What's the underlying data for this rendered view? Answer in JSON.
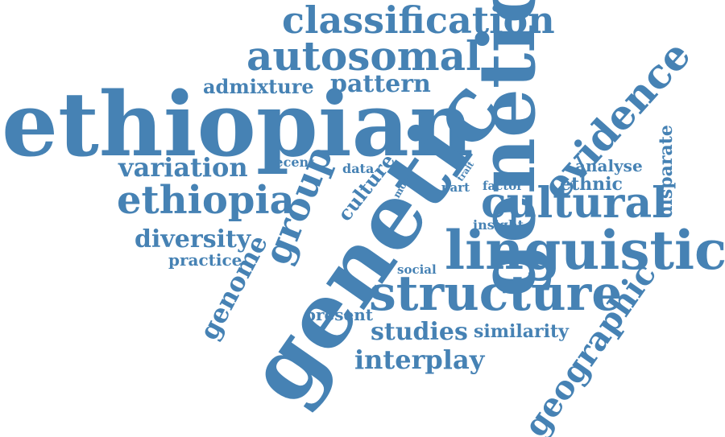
{
  "accent_color": "#4682b4",
  "words": {
    "classification": "classification",
    "autosomal": "autosomal",
    "admixture": "admixture",
    "pattern": "pattern",
    "ethiopian": "ethiopian",
    "genetic_vertical": "genetic",
    "genetic_diagonal": "genetic",
    "evidence": "evidence",
    "variation": "variation",
    "recent": "recent",
    "data": "data",
    "more": "more",
    "trait": "trait",
    "part": "part",
    "factor": "factor",
    "analyse": "analyse",
    "ethnic": "ethnic",
    "disparate": "disparate",
    "ethiopia": "ethiopia",
    "group": "group",
    "culture": "culture",
    "cultural": "cultural",
    "insight": "insight",
    "diversity": "diversity",
    "genome": "genome",
    "practice": "practice",
    "linguistic": "linguistic",
    "social": "social",
    "structure": "structure",
    "present": "present",
    "studies": "studies",
    "similarity": "similarity",
    "geographic": "geographic",
    "interplay": "interplay"
  }
}
